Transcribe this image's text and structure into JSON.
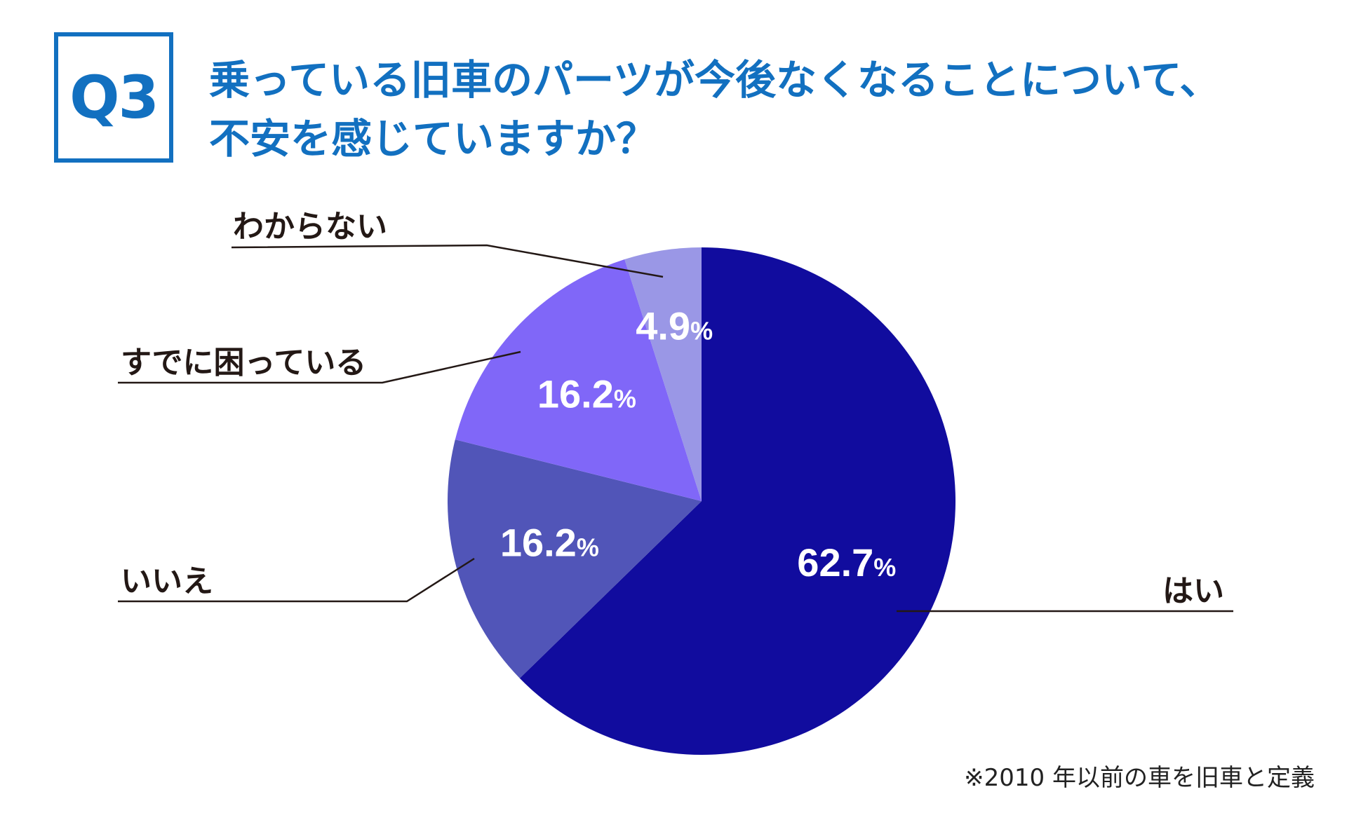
{
  "badge": "Q3",
  "question": {
    "line1": "乗っている旧車のパーツが今後なくなることについて、",
    "line2": "不安を感じていますか？"
  },
  "footnote": "※2010 年以前の車を旧車と定義",
  "chart_data": {
    "type": "pie",
    "title": "",
    "slices": [
      {
        "label": "はい",
        "value": 62.7,
        "display": "62.7",
        "color": "#110c9e"
      },
      {
        "label": "いいえ",
        "value": 16.2,
        "display": "16.2",
        "color": "#5155b8"
      },
      {
        "label": "すでに困っている",
        "value": 16.2,
        "display": "16.2",
        "color": "#8067f8"
      },
      {
        "label": "わからない",
        "value": 4.9,
        "display": "4.9",
        "color": "#9a97e6"
      }
    ],
    "unit": "%",
    "start": "12 o'clock",
    "direction": "clockwise"
  }
}
